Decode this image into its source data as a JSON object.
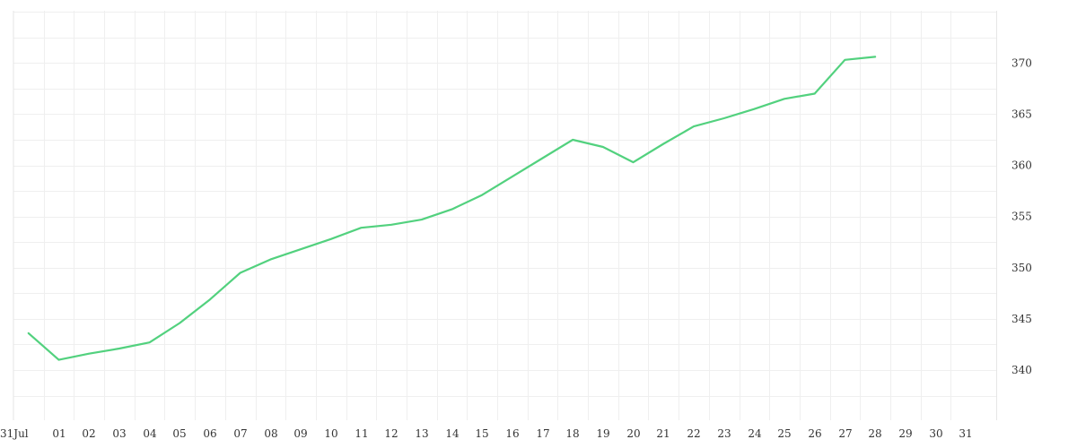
{
  "chart_data": {
    "type": "line",
    "title": "",
    "xlabel": "",
    "ylabel": "",
    "grid": true,
    "legend": "none",
    "x_axis": {
      "type": "date",
      "range": [
        "2023-07-31",
        "2023-09-01"
      ],
      "tick_labels": [
        {
          "date": "2023-07-31",
          "label": "31Jul"
        },
        {
          "date": "2023-08-01",
          "label": "01"
        },
        {
          "date": "2023-08-02",
          "label": "02"
        },
        {
          "date": "2023-08-03",
          "label": "03"
        },
        {
          "date": "2023-08-04",
          "label": "04"
        },
        {
          "date": "2023-08-05",
          "label": "05"
        },
        {
          "date": "2023-08-06",
          "label": "06"
        },
        {
          "date": "2023-08-07",
          "label": "07"
        },
        {
          "date": "2023-08-08",
          "label": "08"
        },
        {
          "date": "2023-08-09",
          "label": "09"
        },
        {
          "date": "2023-08-10",
          "label": "10"
        },
        {
          "date": "2023-08-11",
          "label": "11"
        },
        {
          "date": "2023-08-12",
          "label": "12"
        },
        {
          "date": "2023-08-13",
          "label": "13"
        },
        {
          "date": "2023-08-14",
          "label": "14"
        },
        {
          "date": "2023-08-15",
          "label": "15"
        },
        {
          "date": "2023-08-16",
          "label": "16"
        },
        {
          "date": "2023-08-17",
          "label": "17"
        },
        {
          "date": "2023-08-18",
          "label": "18"
        },
        {
          "date": "2023-08-19",
          "label": "19"
        },
        {
          "date": "2023-08-20",
          "label": "20"
        },
        {
          "date": "2023-08-21",
          "label": "21"
        },
        {
          "date": "2023-08-22",
          "label": "22"
        },
        {
          "date": "2023-08-23",
          "label": "23"
        },
        {
          "date": "2023-08-24",
          "label": "24"
        },
        {
          "date": "2023-08-25",
          "label": "25"
        },
        {
          "date": "2023-08-26",
          "label": "26"
        },
        {
          "date": "2023-08-27",
          "label": "27"
        },
        {
          "date": "2023-08-28",
          "label": "28"
        },
        {
          "date": "2023-08-29",
          "label": "29"
        },
        {
          "date": "2023-08-30",
          "label": "30"
        },
        {
          "date": "2023-08-31",
          "label": "31"
        }
      ]
    },
    "y_axis": {
      "position": "right",
      "range": [
        335.1,
        375.1
      ],
      "ticks": [
        340,
        345,
        350,
        355,
        360,
        365,
        370
      ]
    },
    "series": [
      {
        "color": "#52d17e",
        "points": [
          {
            "x": "2023-07-31 12:00",
            "y": 343.6
          },
          {
            "x": "2023-08-01 12:00",
            "y": 341.0
          },
          {
            "x": "2023-08-02 12:00",
            "y": 341.6
          },
          {
            "x": "2023-08-03 12:00",
            "y": 342.1
          },
          {
            "x": "2023-08-04 12:00",
            "y": 342.7
          },
          {
            "x": "2023-08-05 12:00",
            "y": 344.6
          },
          {
            "x": "2023-08-06 12:00",
            "y": 346.9
          },
          {
            "x": "2023-08-07 12:00",
            "y": 349.5
          },
          {
            "x": "2023-08-08 12:00",
            "y": 350.8
          },
          {
            "x": "2023-08-09 12:00",
            "y": 351.8
          },
          {
            "x": "2023-08-10 12:00",
            "y": 352.8
          },
          {
            "x": "2023-08-11 12:00",
            "y": 353.9
          },
          {
            "x": "2023-08-12 12:00",
            "y": 354.2
          },
          {
            "x": "2023-08-13 12:00",
            "y": 354.7
          },
          {
            "x": "2023-08-14 12:00",
            "y": 355.7
          },
          {
            "x": "2023-08-15 12:00",
            "y": 357.1
          },
          {
            "x": "2023-08-16 12:00",
            "y": 358.9
          },
          {
            "x": "2023-08-17 12:00",
            "y": 360.7
          },
          {
            "x": "2023-08-18 12:00",
            "y": 362.5
          },
          {
            "x": "2023-08-19 12:00",
            "y": 361.8
          },
          {
            "x": "2023-08-20 12:00",
            "y": 360.3
          },
          {
            "x": "2023-08-21 12:00",
            "y": 362.1
          },
          {
            "x": "2023-08-22 12:00",
            "y": 363.8
          },
          {
            "x": "2023-08-23 12:00",
            "y": 364.6
          },
          {
            "x": "2023-08-24 12:00",
            "y": 365.5
          },
          {
            "x": "2023-08-25 12:00",
            "y": 366.5
          },
          {
            "x": "2023-08-26 12:00",
            "y": 367.0
          },
          {
            "x": "2023-08-27 12:00",
            "y": 370.3
          },
          {
            "x": "2023-08-28 12:00",
            "y": 370.6
          }
        ]
      }
    ]
  }
}
